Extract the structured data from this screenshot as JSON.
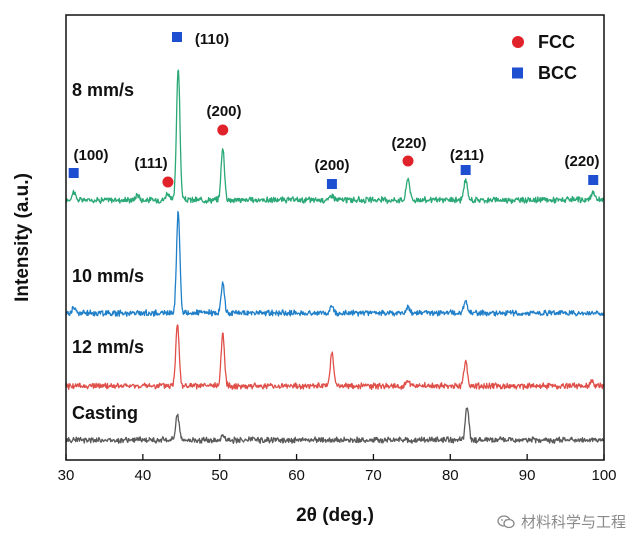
{
  "chart_data": {
    "type": "line",
    "title": "",
    "xlabel": "2θ (deg.)",
    "ylabel": "Intensity (a.u.)",
    "xlim": [
      30,
      100
    ],
    "xticks": [
      30,
      40,
      50,
      60,
      70,
      80,
      90,
      100
    ],
    "y_ticks_shown": false,
    "grid": false,
    "legend_position": "top-right",
    "legend": [
      {
        "label": "FCC",
        "marker": "circle",
        "color": "#e0232b"
      },
      {
        "label": "BCC",
        "marker": "square",
        "color": "#1f4fd1"
      }
    ],
    "series": [
      {
        "name": "8 mm/s",
        "color": "#2aa876",
        "peaks": [
          {
            "x": 31.0,
            "height": 0.6
          },
          {
            "x": 39.3,
            "height": 0.4
          },
          {
            "x": 43.2,
            "height": 0.5
          },
          {
            "x": 44.6,
            "height": 9.5
          },
          {
            "x": 50.4,
            "height": 3.7
          },
          {
            "x": 64.6,
            "height": 0.4
          },
          {
            "x": 74.5,
            "height": 1.6
          },
          {
            "x": 82.0,
            "height": 1.4
          },
          {
            "x": 98.6,
            "height": 0.6
          }
        ]
      },
      {
        "name": "10 mm/s",
        "color": "#1f7fc8",
        "peaks": [
          {
            "x": 31.0,
            "height": 0.4
          },
          {
            "x": 44.6,
            "height": 7.2
          },
          {
            "x": 50.4,
            "height": 2.1
          },
          {
            "x": 64.6,
            "height": 0.5
          },
          {
            "x": 74.5,
            "height": 0.4
          },
          {
            "x": 82.0,
            "height": 0.8
          }
        ]
      },
      {
        "name": "12 mm/s",
        "color": "#e0504a",
        "peaks": [
          {
            "x": 44.5,
            "height": 4.5
          },
          {
            "x": 50.4,
            "height": 3.7
          },
          {
            "x": 64.6,
            "height": 2.4
          },
          {
            "x": 74.5,
            "height": 0.4
          },
          {
            "x": 82.0,
            "height": 1.8
          },
          {
            "x": 98.4,
            "height": 0.4
          }
        ]
      },
      {
        "name": "Casting",
        "color": "#5a5a5a",
        "peaks": [
          {
            "x": 44.5,
            "height": 1.9
          },
          {
            "x": 50.4,
            "height": 0.3
          },
          {
            "x": 82.2,
            "height": 2.4
          }
        ]
      }
    ],
    "annotations": [
      {
        "label": "(100)",
        "phase": "BCC",
        "x": 31.0
      },
      {
        "label": "(111)",
        "phase": "FCC",
        "x": 43.0
      },
      {
        "label": "(110)",
        "phase": "BCC",
        "x": 44.6
      },
      {
        "label": "(200)",
        "phase": "FCC",
        "x": 50.4
      },
      {
        "label": "(200)",
        "phase": "BCC",
        "x": 64.6
      },
      {
        "label": "(220)",
        "phase": "FCC",
        "x": 74.5
      },
      {
        "label": "(211)",
        "phase": "BCC",
        "x": 82.0
      },
      {
        "label": "(220)",
        "phase": "BCC",
        "x": 98.6
      }
    ]
  },
  "watermark": {
    "icon": "wechat-icon",
    "text": "材料科学与工程"
  }
}
